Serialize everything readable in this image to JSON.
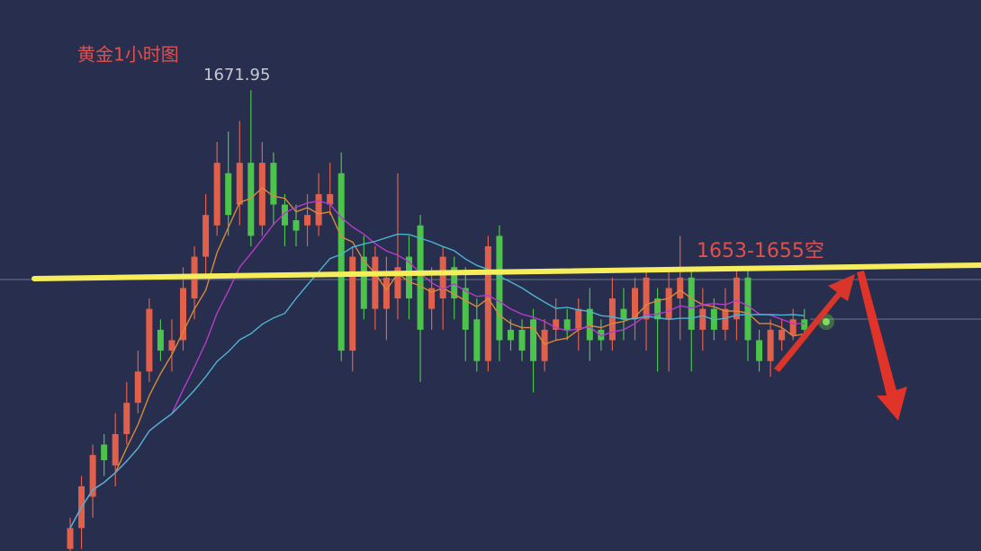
{
  "chart_data": {
    "type": "candlestick",
    "title": "黄金1小时图",
    "annotations": [
      "1671.95",
      "1653-1655空"
    ],
    "ylim": [
      1627.8,
      1680.6
    ],
    "up_color": "#e0604c",
    "down_color": "#4cc44c",
    "ma": [
      {
        "period": 5,
        "color": "#d98a3a"
      },
      {
        "period": 10,
        "color": "#b53cc9"
      },
      {
        "period": 20,
        "color": "#4fb3d0"
      }
    ],
    "candles": [
      {
        "open": 1628,
        "high": 1631,
        "low": 1627.8,
        "close": 1630
      },
      {
        "open": 1630,
        "high": 1635,
        "low": 1628,
        "close": 1634
      },
      {
        "open": 1633,
        "high": 1638,
        "low": 1631,
        "close": 1637
      },
      {
        "open": 1638,
        "high": 1639,
        "low": 1635,
        "close": 1636.5
      },
      {
        "open": 1636,
        "high": 1641,
        "low": 1634,
        "close": 1639
      },
      {
        "open": 1639,
        "high": 1644,
        "low": 1638,
        "close": 1642
      },
      {
        "open": 1642,
        "high": 1647,
        "low": 1641,
        "close": 1645
      },
      {
        "open": 1645,
        "high": 1652,
        "low": 1644,
        "close": 1651
      },
      {
        "open": 1649,
        "high": 1650,
        "low": 1646,
        "close": 1647
      },
      {
        "open": 1647,
        "high": 1650,
        "low": 1645,
        "close": 1648
      },
      {
        "open": 1648,
        "high": 1655,
        "low": 1647,
        "close": 1653
      },
      {
        "open": 1652,
        "high": 1657,
        "low": 1650,
        "close": 1656
      },
      {
        "open": 1656,
        "high": 1662,
        "low": 1654,
        "close": 1660
      },
      {
        "open": 1659,
        "high": 1667,
        "low": 1658,
        "close": 1665
      },
      {
        "open": 1664,
        "high": 1668,
        "low": 1658,
        "close": 1660
      },
      {
        "open": 1661,
        "high": 1669,
        "low": 1659,
        "close": 1665
      },
      {
        "open": 1665,
        "high": 1671.95,
        "low": 1657,
        "close": 1658
      },
      {
        "open": 1659,
        "high": 1667,
        "low": 1658,
        "close": 1665
      },
      {
        "open": 1665,
        "high": 1666,
        "low": 1659,
        "close": 1661
      },
      {
        "open": 1661,
        "high": 1662,
        "low": 1657,
        "close": 1659
      },
      {
        "open": 1659.5,
        "high": 1661,
        "low": 1657,
        "close": 1658.5
      },
      {
        "open": 1659,
        "high": 1662,
        "low": 1657,
        "close": 1660
      },
      {
        "open": 1659,
        "high": 1664,
        "low": 1658,
        "close": 1662
      },
      {
        "open": 1661,
        "high": 1665,
        "low": 1660,
        "close": 1662
      },
      {
        "open": 1664,
        "high": 1666,
        "low": 1646,
        "close": 1647
      },
      {
        "open": 1647,
        "high": 1657,
        "low": 1645,
        "close": 1656
      },
      {
        "open": 1656,
        "high": 1658,
        "low": 1650,
        "close": 1651
      },
      {
        "open": 1651,
        "high": 1657,
        "low": 1649,
        "close": 1656
      },
      {
        "open": 1651,
        "high": 1656,
        "low": 1648,
        "close": 1654
      },
      {
        "open": 1652,
        "high": 1664,
        "low": 1650,
        "close": 1655
      },
      {
        "open": 1656,
        "high": 1658,
        "low": 1650,
        "close": 1652
      },
      {
        "open": 1659,
        "high": 1660,
        "low": 1644,
        "close": 1649
      },
      {
        "open": 1651,
        "high": 1655,
        "low": 1649,
        "close": 1653
      },
      {
        "open": 1652,
        "high": 1657,
        "low": 1649,
        "close": 1656
      },
      {
        "open": 1655,
        "high": 1656,
        "low": 1650,
        "close": 1652
      },
      {
        "open": 1653,
        "high": 1655,
        "low": 1646,
        "close": 1649
      },
      {
        "open": 1650,
        "high": 1652,
        "low": 1645,
        "close": 1646
      },
      {
        "open": 1646,
        "high": 1658,
        "low": 1645,
        "close": 1657
      },
      {
        "open": 1658,
        "high": 1659,
        "low": 1646,
        "close": 1648
      },
      {
        "open": 1649,
        "high": 1650,
        "low": 1647,
        "close": 1648
      },
      {
        "open": 1649,
        "high": 1650,
        "low": 1646,
        "close": 1647
      },
      {
        "open": 1650,
        "high": 1651,
        "low": 1643,
        "close": 1646
      },
      {
        "open": 1646,
        "high": 1650,
        "low": 1645,
        "close": 1649
      },
      {
        "open": 1649,
        "high": 1652,
        "low": 1648,
        "close": 1650
      },
      {
        "open": 1650,
        "high": 1651,
        "low": 1648,
        "close": 1649
      },
      {
        "open": 1649,
        "high": 1652,
        "low": 1647,
        "close": 1651
      },
      {
        "open": 1651,
        "high": 1653,
        "low": 1646,
        "close": 1648
      },
      {
        "open": 1649,
        "high": 1650,
        "low": 1647,
        "close": 1648
      },
      {
        "open": 1648,
        "high": 1654,
        "low": 1647,
        "close": 1652
      },
      {
        "open": 1651,
        "high": 1653,
        "low": 1648,
        "close": 1650
      },
      {
        "open": 1650,
        "high": 1654,
        "low": 1648,
        "close": 1653
      },
      {
        "open": 1650,
        "high": 1655,
        "low": 1647,
        "close": 1654
      },
      {
        "open": 1652,
        "high": 1653,
        "low": 1645,
        "close": 1650
      },
      {
        "open": 1650,
        "high": 1655,
        "low": 1645,
        "close": 1653
      },
      {
        "open": 1652,
        "high": 1658,
        "low": 1648,
        "close": 1654
      },
      {
        "open": 1654,
        "high": 1655,
        "low": 1645,
        "close": 1649
      },
      {
        "open": 1649,
        "high": 1653,
        "low": 1647,
        "close": 1651
      },
      {
        "open": 1651,
        "high": 1652,
        "low": 1648,
        "close": 1649
      },
      {
        "open": 1649,
        "high": 1653,
        "low": 1648,
        "close": 1651
      },
      {
        "open": 1650,
        "high": 1655,
        "low": 1648,
        "close": 1654
      },
      {
        "open": 1654,
        "high": 1655,
        "low": 1646,
        "close": 1648
      },
      {
        "open": 1648,
        "high": 1649,
        "low": 1645,
        "close": 1646
      },
      {
        "open": 1646,
        "high": 1650,
        "low": 1644.5,
        "close": 1649
      },
      {
        "open": 1648,
        "high": 1650,
        "low": 1647,
        "close": 1649
      },
      {
        "open": 1648.5,
        "high": 1651,
        "low": 1648,
        "close": 1650
      },
      {
        "open": 1650,
        "high": 1651,
        "low": 1648,
        "close": 1649
      }
    ]
  }
}
